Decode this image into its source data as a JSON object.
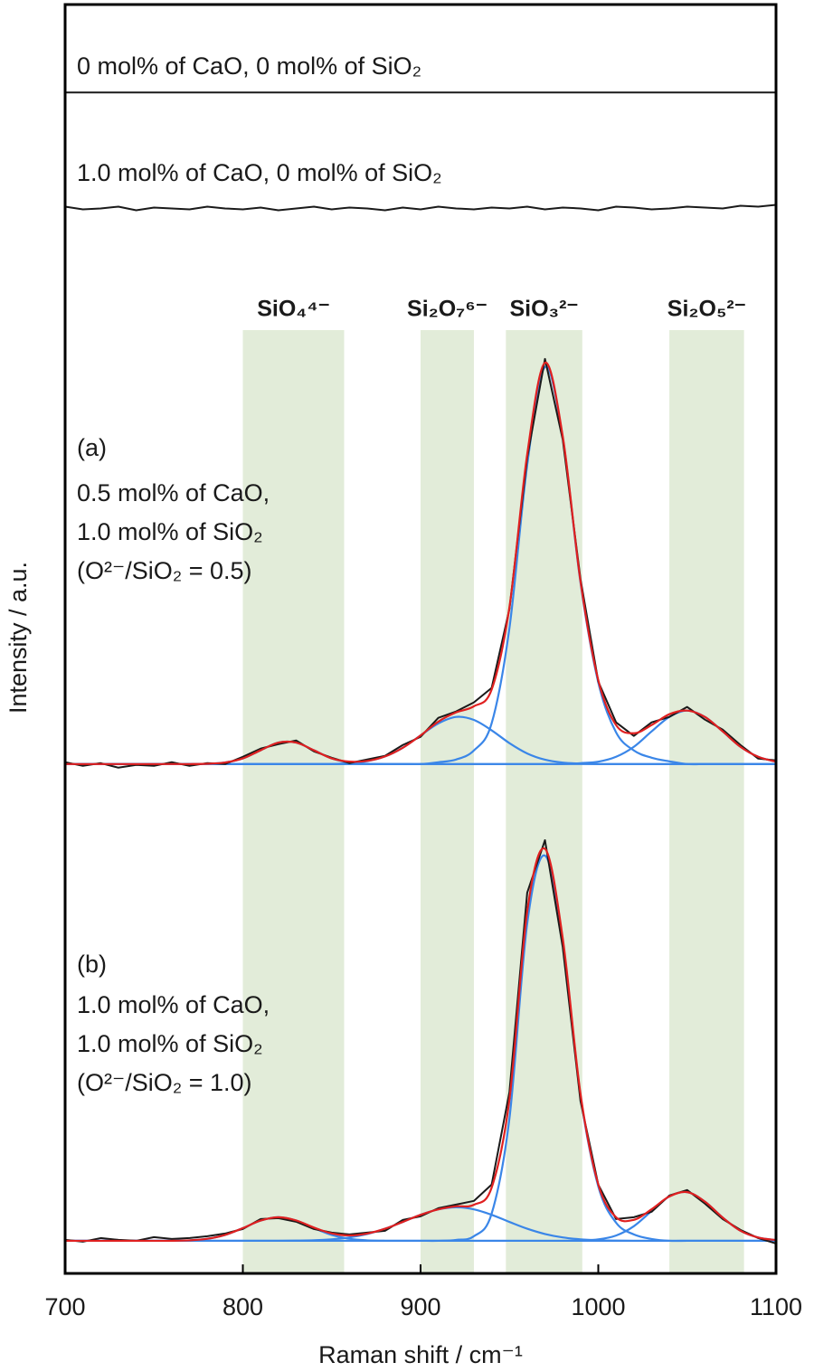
{
  "chart_data": {
    "type": "line",
    "xlabel": "Raman shift / cm⁻¹",
    "ylabel": "Intensity / a.u.",
    "xlim": [
      700,
      1100
    ],
    "xticks": [
      700,
      800,
      900,
      1000,
      1100
    ],
    "ylim": [
      0,
      14
    ],
    "bands": [
      {
        "label": "SiO₄⁴⁻",
        "range": [
          800,
          857
        ]
      },
      {
        "label": "Si₂O₇⁶⁻",
        "range": [
          900,
          930
        ]
      },
      {
        "label": "SiO₃²⁻",
        "range": [
          948,
          991
        ]
      },
      {
        "label": "Si₂O₅²⁻",
        "range": [
          1040,
          1082
        ]
      }
    ],
    "band_color": "#e2ecd9",
    "annotations": [
      "0 mol% of CaO, 0 mol% of SiO₂",
      "1.0 mol% of CaO, 0 mol% of SiO₂",
      "(a)",
      "0.5 mol% of CaO,",
      "1.0 mol% of SiO₂",
      "(O²⁻/SiO₂ = 0.5)",
      "(b)",
      "1.0 mol% of CaO,",
      "1.0 mol% of SiO₂",
      "(O²⁻/SiO₂ = 1.0)"
    ],
    "x": [
      700,
      710,
      720,
      730,
      740,
      750,
      760,
      770,
      780,
      790,
      800,
      810,
      820,
      830,
      840,
      850,
      860,
      870,
      880,
      890,
      900,
      910,
      920,
      930,
      940,
      950,
      960,
      970,
      980,
      990,
      1000,
      1010,
      1020,
      1030,
      1040,
      1050,
      1060,
      1070,
      1080,
      1090,
      1100
    ],
    "series": [
      {
        "color": "#1a1a1a",
        "smooth": false,
        "values": [
          13.03,
          13.03,
          13.03,
          13.03,
          13.03,
          13.03,
          13.03,
          13.03,
          13.03,
          13.03,
          13.03,
          13.03,
          13.03,
          13.03,
          13.03,
          13.03,
          13.03,
          13.03,
          13.03,
          13.03,
          13.03,
          13.03,
          13.03,
          13.03,
          13.03,
          13.03,
          13.03,
          13.03,
          13.03,
          13.03,
          13.03,
          13.03,
          13.03,
          13.03,
          13.03,
          13.03,
          13.03,
          13.03,
          13.03,
          13.03,
          13.03
        ]
      },
      {
        "color": "#1a1a1a",
        "smooth": false,
        "values": [
          11.77,
          11.74,
          11.75,
          11.77,
          11.73,
          11.76,
          11.75,
          11.74,
          11.77,
          11.75,
          11.74,
          11.76,
          11.73,
          11.75,
          11.77,
          11.74,
          11.76,
          11.75,
          11.73,
          11.76,
          11.74,
          11.77,
          11.75,
          11.74,
          11.76,
          11.75,
          11.77,
          11.74,
          11.76,
          11.75,
          11.73,
          11.77,
          11.76,
          11.74,
          11.75,
          11.77,
          11.76,
          11.75,
          11.78,
          11.77,
          11.79
        ]
      },
      {
        "color": "#3a86e8",
        "smooth": true,
        "values": [
          5.62,
          5.62,
          5.62,
          5.62,
          5.62,
          5.62,
          5.62,
          5.62,
          5.623,
          5.637,
          5.682,
          5.772,
          5.857,
          5.857,
          5.772,
          5.682,
          5.637,
          5.623,
          5.62,
          5.62,
          5.62,
          5.62,
          5.62,
          5.62,
          5.62,
          5.62,
          5.62,
          5.62,
          5.62,
          5.62,
          5.62,
          5.62,
          5.62,
          5.62,
          5.62,
          5.62,
          5.62,
          5.62,
          5.62,
          5.62,
          5.62
        ]
      },
      {
        "color": "#3a86e8",
        "smooth": true,
        "values": [
          5.62,
          5.62,
          5.62,
          5.62,
          5.62,
          5.62,
          5.62,
          5.62,
          5.62,
          5.62,
          5.62,
          5.62,
          5.62,
          5.62,
          5.62,
          5.62,
          5.63,
          5.652,
          5.704,
          5.8,
          5.936,
          6.068,
          6.14,
          6.107,
          5.992,
          5.851,
          5.737,
          5.668,
          5.636,
          5.625,
          5.62,
          5.62,
          5.62,
          5.62,
          5.62,
          5.62,
          5.62,
          5.62,
          5.62,
          5.62,
          5.62
        ]
      },
      {
        "color": "#3a86e8",
        "smooth": true,
        "values": [
          5.62,
          5.62,
          5.62,
          5.62,
          5.62,
          5.62,
          5.62,
          5.62,
          5.62,
          5.62,
          5.62,
          5.62,
          5.62,
          5.62,
          5.62,
          5.62,
          5.62,
          5.62,
          5.62,
          5.62,
          5.62,
          5.64,
          5.67,
          5.77,
          6.07,
          7.12,
          8.92,
          10.0,
          9.22,
          7.62,
          6.52,
          5.97,
          5.77,
          5.69,
          5.65,
          5.62,
          5.62,
          5.62,
          5.62,
          5.62,
          5.62
        ]
      },
      {
        "color": "#3a86e8",
        "smooth": true,
        "values": [
          5.62,
          5.62,
          5.62,
          5.62,
          5.62,
          5.62,
          5.62,
          5.62,
          5.62,
          5.62,
          5.62,
          5.62,
          5.62,
          5.62,
          5.62,
          5.62,
          5.62,
          5.62,
          5.62,
          5.62,
          5.62,
          5.62,
          5.62,
          5.62,
          5.62,
          5.62,
          5.62,
          5.62,
          5.62,
          5.63,
          5.646,
          5.7,
          5.81,
          5.98,
          6.14,
          6.21,
          6.14,
          5.98,
          5.81,
          5.7,
          5.646
        ]
      },
      {
        "color": "#1a1a1a",
        "smooth": false,
        "values": [
          5.64,
          5.6,
          5.63,
          5.58,
          5.61,
          5.6,
          5.64,
          5.6,
          5.63,
          5.62,
          5.7,
          5.79,
          5.84,
          5.88,
          5.76,
          5.69,
          5.63,
          5.67,
          5.71,
          5.83,
          5.92,
          6.13,
          6.2,
          6.3,
          6.46,
          7.33,
          9.0,
          10.09,
          9.2,
          7.66,
          6.53,
          6.08,
          5.93,
          6.08,
          6.14,
          6.25,
          6.11,
          6.0,
          5.83,
          5.68,
          5.66
        ]
      },
      {
        "color": "#e02020",
        "smooth": true,
        "values": [
          5.62,
          5.62,
          5.62,
          5.62,
          5.62,
          5.62,
          5.62,
          5.62,
          5.623,
          5.637,
          5.682,
          5.772,
          5.857,
          5.857,
          5.772,
          5.682,
          5.647,
          5.655,
          5.704,
          5.8,
          5.936,
          6.088,
          6.19,
          6.257,
          6.442,
          7.351,
          9.037,
          10.048,
          9.236,
          7.635,
          6.546,
          6.05,
          5.96,
          6.05,
          6.17,
          6.21,
          6.14,
          5.98,
          5.81,
          5.7,
          5.646
        ]
      },
      {
        "color": "#3a86e8",
        "smooth": true,
        "values": [
          0.36,
          0.36,
          0.36,
          0.36,
          0.36,
          0.36,
          0.36,
          0.365,
          0.382,
          0.425,
          0.5,
          0.583,
          0.62,
          0.583,
          0.5,
          0.425,
          0.382,
          0.365,
          0.36,
          0.36,
          0.36,
          0.36,
          0.36,
          0.36,
          0.36,
          0.36,
          0.36,
          0.36,
          0.36,
          0.36,
          0.36,
          0.36,
          0.36,
          0.36,
          0.36,
          0.36,
          0.36,
          0.36,
          0.36,
          0.36,
          0.36
        ]
      },
      {
        "color": "#3a86e8",
        "smooth": true,
        "values": [
          0.36,
          0.36,
          0.36,
          0.36,
          0.36,
          0.36,
          0.36,
          0.36,
          0.36,
          0.36,
          0.36,
          0.36,
          0.36,
          0.362,
          0.366,
          0.376,
          0.397,
          0.435,
          0.493,
          0.568,
          0.647,
          0.707,
          0.73,
          0.707,
          0.647,
          0.568,
          0.493,
          0.435,
          0.397,
          0.376,
          0.366,
          0.362,
          0.36,
          0.36,
          0.36,
          0.36,
          0.36,
          0.36,
          0.36,
          0.36,
          0.36
        ]
      },
      {
        "color": "#3a86e8",
        "smooth": true,
        "values": [
          0.36,
          0.36,
          0.36,
          0.36,
          0.36,
          0.36,
          0.36,
          0.36,
          0.36,
          0.36,
          0.36,
          0.36,
          0.36,
          0.36,
          0.36,
          0.36,
          0.36,
          0.36,
          0.36,
          0.36,
          0.36,
          0.36,
          0.37,
          0.41,
          0.66,
          1.71,
          3.86,
          4.61,
          3.66,
          1.96,
          0.96,
          0.56,
          0.43,
          0.38,
          0.36,
          0.36,
          0.36,
          0.36,
          0.36,
          0.36,
          0.36
        ]
      },
      {
        "color": "#3a86e8",
        "smooth": true,
        "values": [
          0.36,
          0.36,
          0.36,
          0.36,
          0.36,
          0.36,
          0.36,
          0.36,
          0.36,
          0.36,
          0.36,
          0.36,
          0.36,
          0.36,
          0.36,
          0.36,
          0.36,
          0.36,
          0.36,
          0.36,
          0.36,
          0.36,
          0.36,
          0.36,
          0.36,
          0.36,
          0.36,
          0.36,
          0.36,
          0.364,
          0.376,
          0.418,
          0.521,
          0.688,
          0.849,
          0.897,
          0.792,
          0.616,
          0.471,
          0.396,
          0.368
        ]
      },
      {
        "color": "#1a1a1a",
        "smooth": false,
        "values": [
          0.37,
          0.35,
          0.39,
          0.37,
          0.36,
          0.4,
          0.38,
          0.39,
          0.41,
          0.44,
          0.49,
          0.6,
          0.61,
          0.57,
          0.49,
          0.45,
          0.43,
          0.45,
          0.47,
          0.59,
          0.63,
          0.72,
          0.76,
          0.8,
          0.98,
          2.0,
          4.2,
          4.78,
          3.6,
          1.9,
          0.98,
          0.6,
          0.62,
          0.68,
          0.86,
          0.92,
          0.77,
          0.6,
          0.48,
          0.39,
          0.33
        ]
      },
      {
        "color": "#e02020",
        "smooth": true,
        "values": [
          0.36,
          0.36,
          0.36,
          0.36,
          0.36,
          0.36,
          0.36,
          0.365,
          0.382,
          0.425,
          0.5,
          0.583,
          0.62,
          0.585,
          0.506,
          0.441,
          0.419,
          0.44,
          0.493,
          0.568,
          0.647,
          0.707,
          0.74,
          0.757,
          0.947,
          1.918,
          3.993,
          4.685,
          3.697,
          1.98,
          0.982,
          0.62,
          0.591,
          0.708,
          0.849,
          0.897,
          0.792,
          0.616,
          0.471,
          0.396,
          0.368
        ]
      }
    ]
  }
}
